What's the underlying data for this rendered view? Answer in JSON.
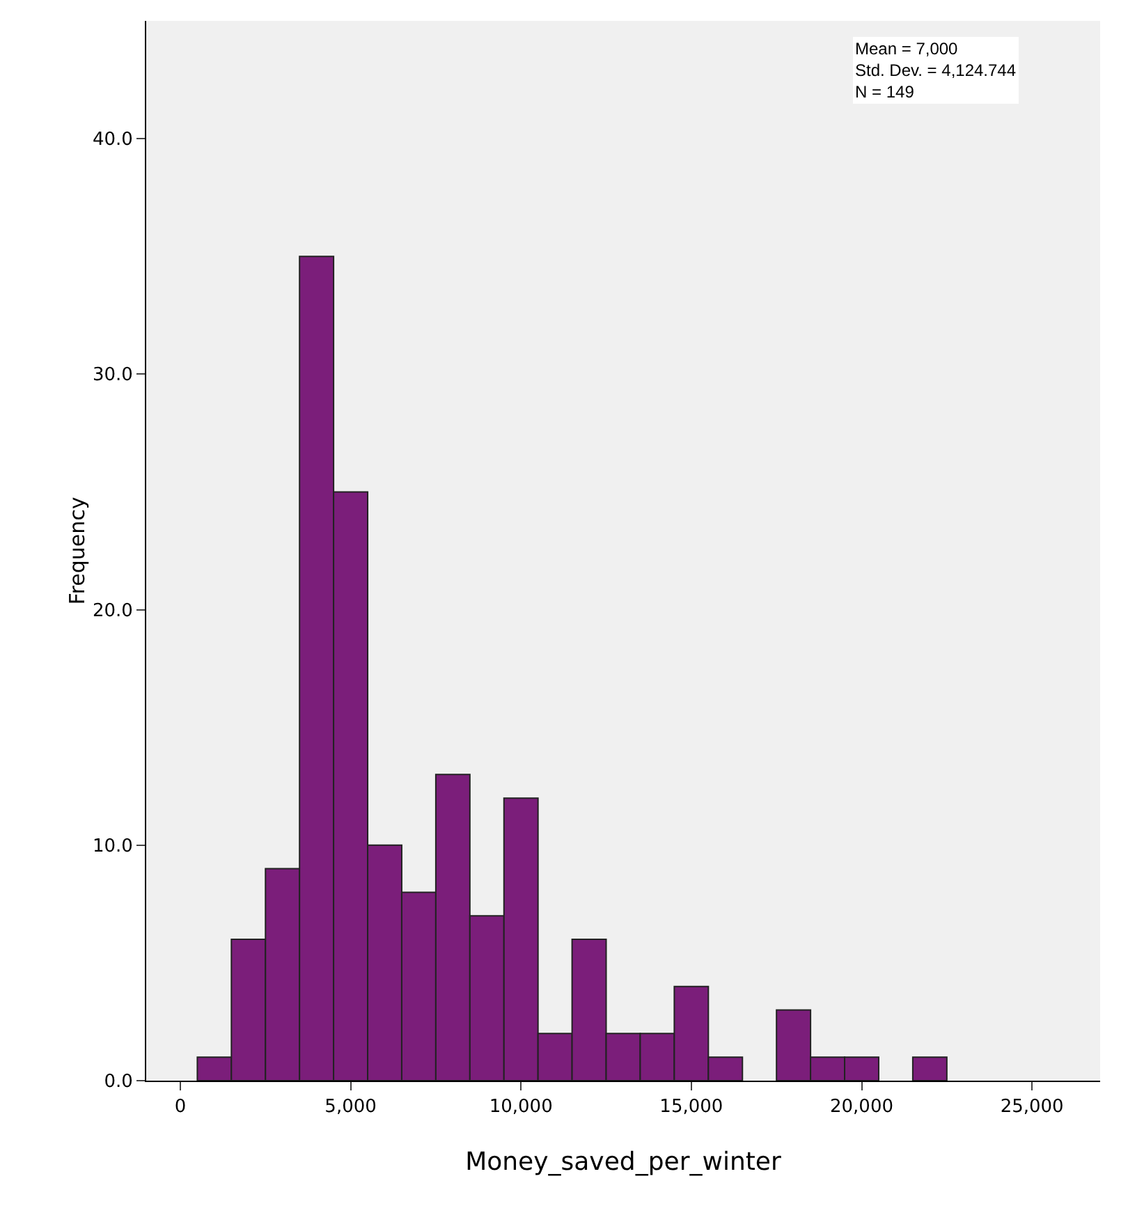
{
  "chart_data": {
    "type": "histogram",
    "xlabel": "Money_saved_per_winter",
    "ylabel": "Frequency",
    "bins": [
      500,
      1500,
      2500,
      3500,
      4500,
      5500,
      6500,
      7500,
      8500,
      9500,
      10500,
      11500,
      12500,
      13500,
      14500,
      15500,
      16500,
      17500,
      18500,
      19500,
      20500,
      21500,
      22500
    ],
    "values": [
      1,
      6,
      9,
      35,
      25,
      10,
      8,
      13,
      7,
      12,
      2,
      6,
      2,
      2,
      4,
      1,
      0,
      3,
      1,
      1,
      0,
      1
    ],
    "color": "#7b1e7a",
    "xlim": [
      -1000,
      27000
    ],
    "xticks": [
      0,
      {
        "value": 5000,
        "label": "5,000"
      },
      {
        "value": 10000,
        "label": "10,000"
      },
      {
        "value": 15000,
        "label": "15,000"
      },
      {
        "value": 20000,
        "label": "20,000"
      },
      {
        "value": 25000,
        "label": "25,000"
      }
    ],
    "ylim": [
      0,
      45
    ],
    "yticks": [
      {
        "value": 0,
        "label": "0.0"
      },
      {
        "value": 10,
        "label": "10.0"
      },
      {
        "value": 20,
        "label": "20.0"
      },
      {
        "value": 30,
        "label": "30.0"
      },
      {
        "value": 40,
        "label": "40.0"
      }
    ],
    "annotations": [
      "Mean = 7,000",
      "Std. Dev. = 4,124.744",
      "N = 149"
    ],
    "grid": false
  }
}
